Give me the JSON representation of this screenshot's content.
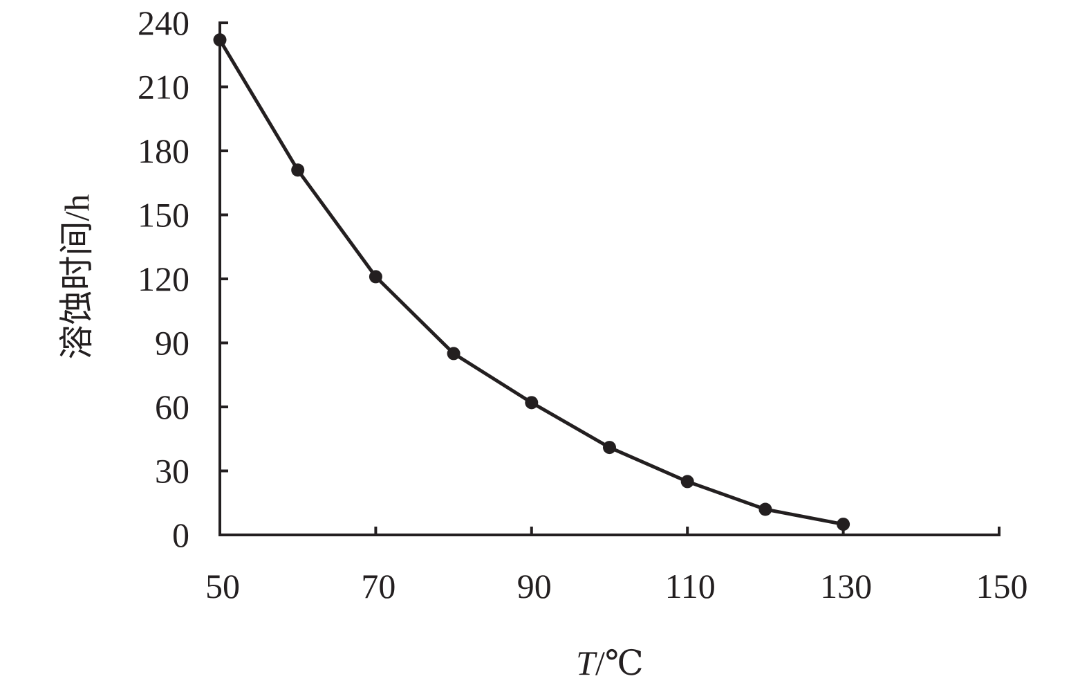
{
  "chart_data": {
    "type": "line",
    "x": [
      50,
      60,
      70,
      80,
      90,
      100,
      110,
      120,
      130
    ],
    "series": [
      {
        "values": [
          232,
          171,
          121,
          85,
          62,
          41,
          25,
          12,
          5
        ]
      }
    ],
    "xlabel": "T/℃",
    "xlabel_var": "T",
    "xlabel_unit": "/℃",
    "ylabel": "溶蚀时间/h",
    "xlim": [
      50,
      150
    ],
    "ylim": [
      0,
      240
    ],
    "x_ticks": [
      50,
      70,
      90,
      110,
      130,
      150
    ],
    "y_ticks": [
      0,
      30,
      60,
      90,
      120,
      150,
      180,
      210,
      240
    ],
    "grid": false,
    "legend": "none",
    "line_color": "#231f20",
    "marker": "filled-circle"
  }
}
